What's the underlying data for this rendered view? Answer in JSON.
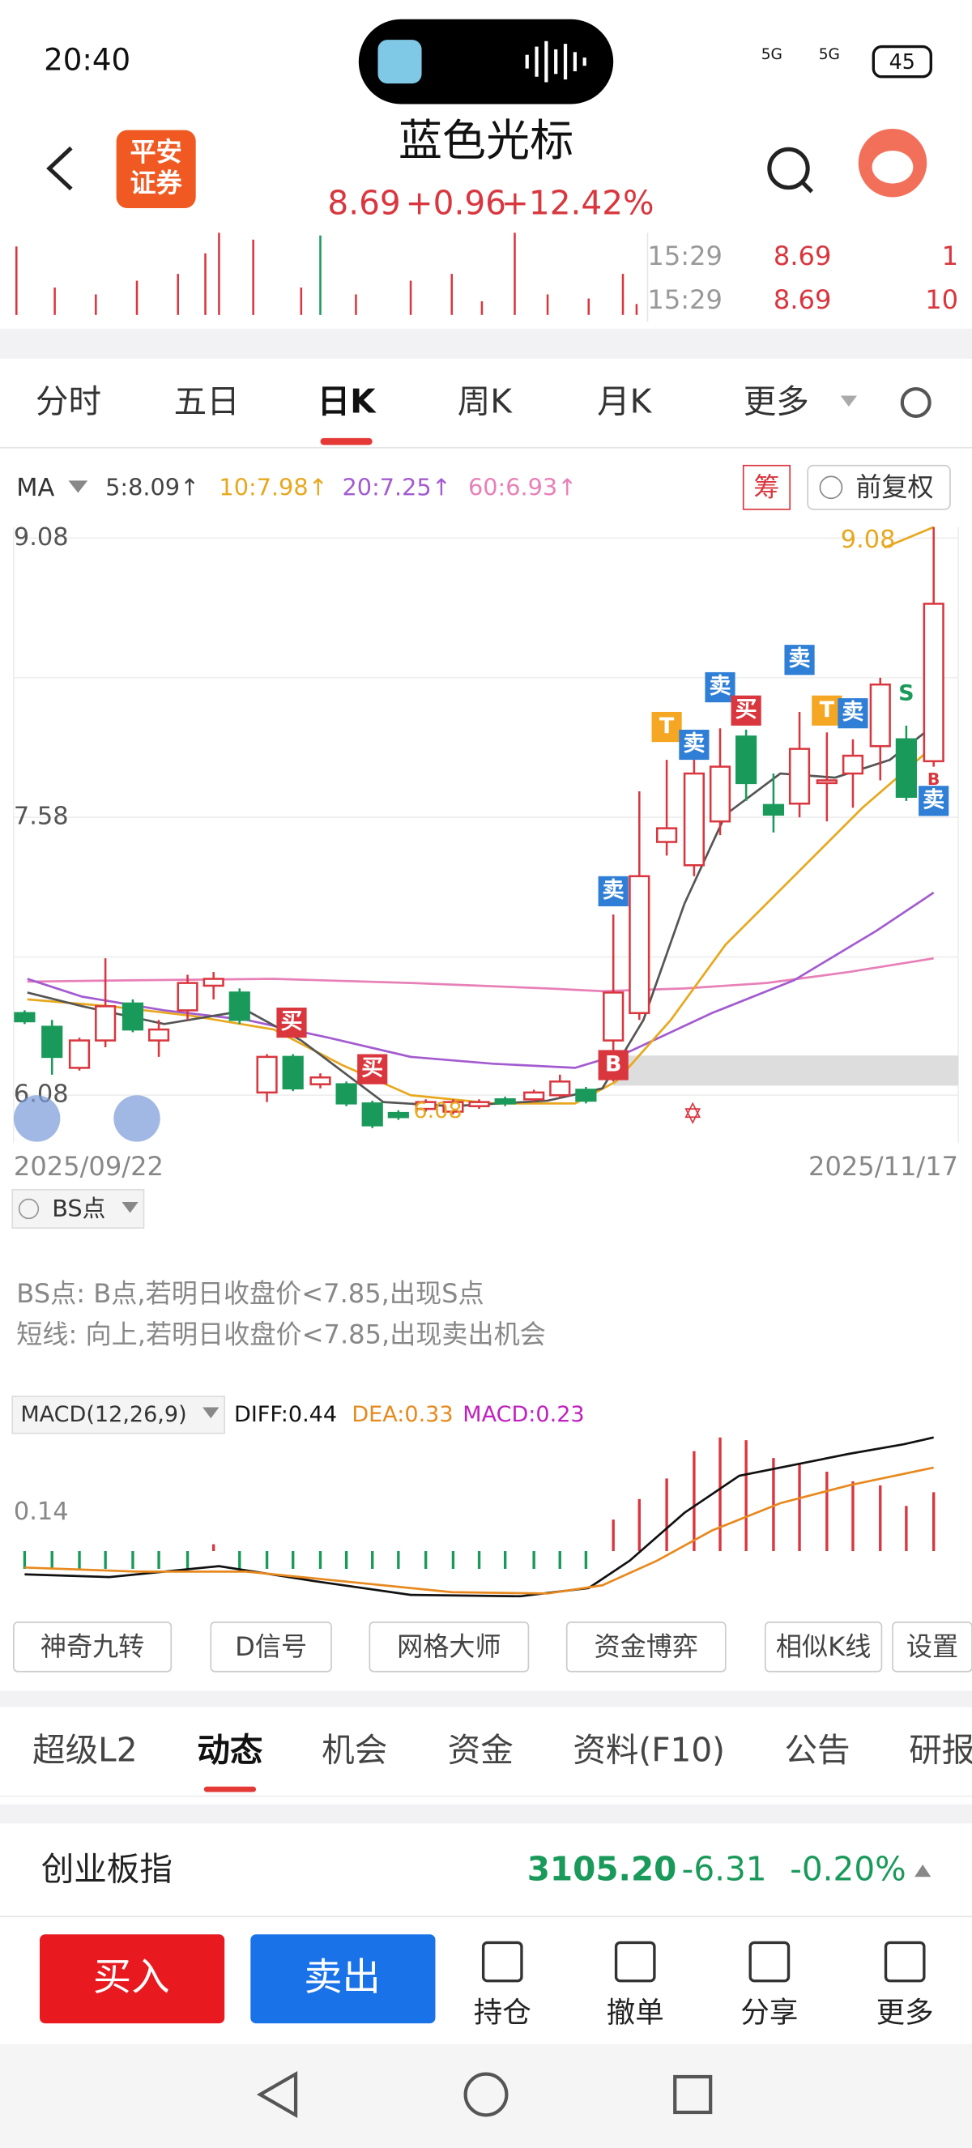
{
  "status": {
    "time": "20:40",
    "battery": "45",
    "net1": "5G",
    "net2": "5G"
  },
  "header": {
    "logo": [
      "平安",
      "证券"
    ],
    "title": "蓝色光标",
    "price": "8.69",
    "change": "+0.96",
    "pct": "+12.42%"
  },
  "ticks": [
    [
      "15:29",
      "8.69",
      "1"
    ],
    [
      "15:29",
      "8.69",
      "10"
    ]
  ],
  "tabs": [
    "分时",
    "五日",
    "日K",
    "周K",
    "月K",
    "更多"
  ],
  "ma": {
    "label": "MA",
    "items": [
      "5:8.09↑",
      "10:7.98↑",
      "20:7.25↑",
      "60:6.93↑"
    ],
    "chip": "筹",
    "adjust": "前复权"
  },
  "chart": {
    "yticks": [
      "9.08",
      "7.58",
      "6.08"
    ],
    "high": "9.08",
    "low": "6.08",
    "dates": [
      "2025/09/22",
      "2025/11/17"
    ],
    "markers": [
      "买",
      "买",
      "卖",
      "T",
      "卖",
      "卖",
      "买",
      "卖",
      "T",
      "卖",
      "S",
      "B",
      "卖",
      "B"
    ]
  },
  "bs": {
    "label": "BS点",
    "notes": [
      "BS点: B点,若明日收盘价<7.85,出现S点",
      "短线: 向上,若明日收盘价<7.85,出现卖出机会"
    ]
  },
  "macd": {
    "label": "MACD(12,26,9)",
    "diff": "DIFF:0.44",
    "dea": "DEA:0.33",
    "macd": "MACD:0.23",
    "tick": "0.14"
  },
  "tools": [
    "神奇九转",
    "D信号",
    "网格大师",
    "资金博弈",
    "相似K线",
    "设置"
  ],
  "tabs2": [
    "超级L2",
    "动态",
    "机会",
    "资金",
    "资料(F10)",
    "公告",
    "研报"
  ],
  "index": {
    "name": "创业板指",
    "value": "3105.20",
    "change": "-6.31",
    "pct": "-0.20%"
  },
  "actions": {
    "buy": "买入",
    "sell": "卖出",
    "items": [
      "持仓",
      "撤单",
      "分享",
      "更多"
    ]
  }
}
